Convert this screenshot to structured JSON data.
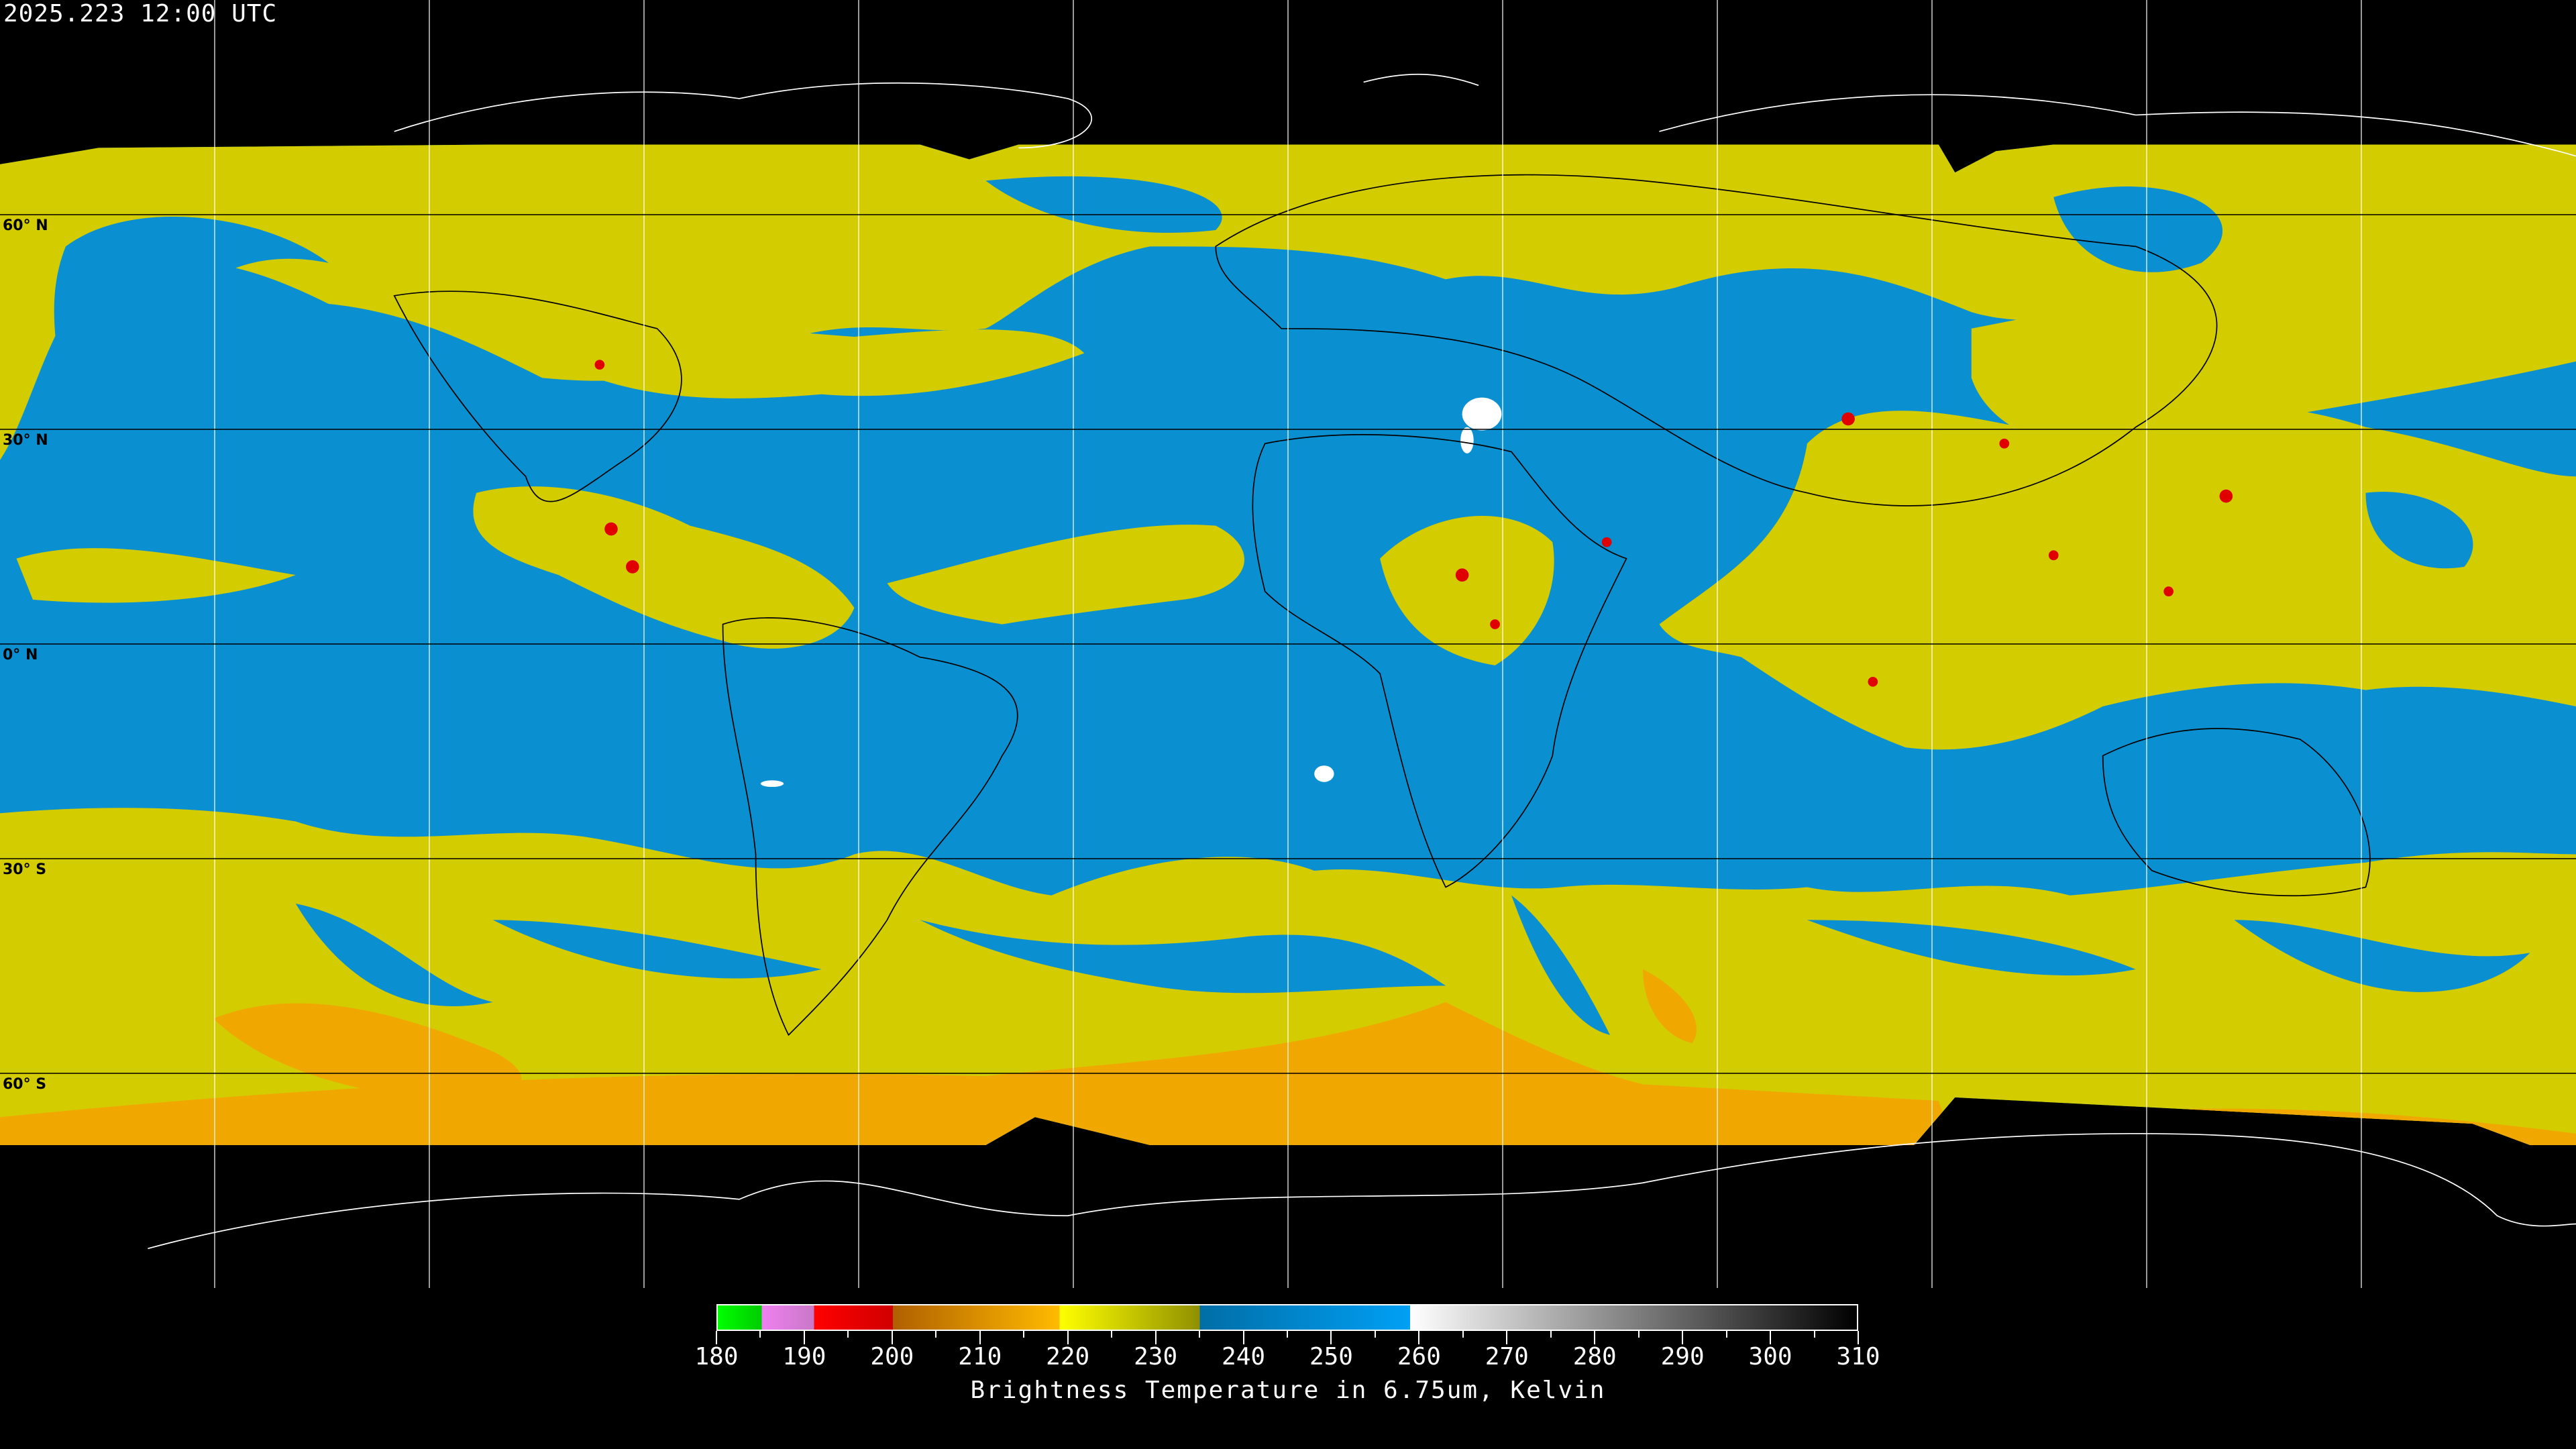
{
  "header": {
    "timestamp": "2025.223 12:00 UTC"
  },
  "map": {
    "projection": "equirectangular",
    "latitude_labels": [
      "60° N",
      "30° N",
      "0° N",
      "30° S",
      "60° S"
    ],
    "latitude_values": [
      60,
      30,
      0,
      -30,
      -60
    ],
    "gridline_spacing_deg": 30,
    "colors": {
      "background": "#000000",
      "dry_blue": "#0a8fd0",
      "moist_yellow": "#d8d400",
      "cold_orange": "#f0a800",
      "convective_red": "#e00000",
      "very_warm_white": "#ffffff"
    }
  },
  "colorbar": {
    "title": "Brightness Temperature in 6.75um, Kelvin",
    "min": 180,
    "max": 310,
    "tick_labels": [
      "180",
      "190",
      "200",
      "210",
      "220",
      "230",
      "240",
      "250",
      "260",
      "270",
      "280",
      "290",
      "300",
      "310"
    ],
    "minor_tick_step": 5,
    "stops": [
      {
        "k": 180,
        "color": "#00ff00"
      },
      {
        "k": 185,
        "color": "#00cc00"
      },
      {
        "k": 185,
        "color": "#f080f0"
      },
      {
        "k": 191,
        "color": "#c878c8"
      },
      {
        "k": 191,
        "color": "#ff0000"
      },
      {
        "k": 200,
        "color": "#d00000"
      },
      {
        "k": 200,
        "color": "#b06000"
      },
      {
        "k": 219,
        "color": "#ffbb00"
      },
      {
        "k": 219,
        "color": "#ffff00"
      },
      {
        "k": 235,
        "color": "#909000"
      },
      {
        "k": 235,
        "color": "#006ea6"
      },
      {
        "k": 259,
        "color": "#00a0f5"
      },
      {
        "k": 259,
        "color": "#ffffff"
      },
      {
        "k": 310,
        "color": "#000000"
      }
    ]
  }
}
